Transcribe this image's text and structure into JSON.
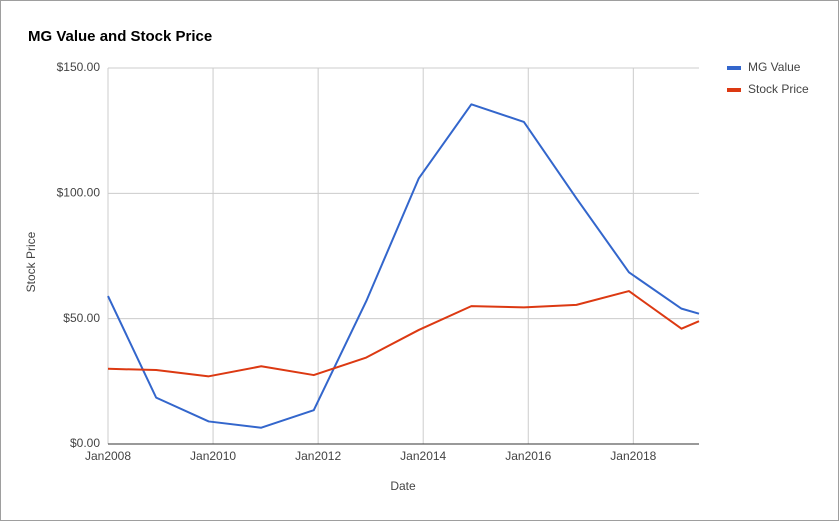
{
  "chart_data": {
    "type": "line",
    "title": "MG Value and Stock Price",
    "x_label": "Date",
    "y_label": "Stock Price",
    "x": [
      "2008-01",
      "2008-12",
      "2009-12",
      "2010-12",
      "2011-12",
      "2012-12",
      "2013-12",
      "2014-12",
      "2015-12",
      "2016-12",
      "2017-12",
      "2018-12",
      "2019-04"
    ],
    "series": [
      {
        "name": "MG Value",
        "color": "#3366cc",
        "values": [
          59,
          18.5,
          9,
          6.5,
          13.5,
          57,
          106,
          135.5,
          128.5,
          98,
          68.5,
          54,
          52
        ]
      },
      {
        "name": "Stock Price",
        "color": "#dc3912",
        "values": [
          30,
          29.5,
          27,
          31,
          27.5,
          34.5,
          45.5,
          55,
          54.5,
          55.5,
          61,
          46,
          49
        ]
      }
    ],
    "xlim": [
      "2008-01",
      "2019-04"
    ],
    "xticks": [
      {
        "value": "2008-01",
        "label": "Jan2008"
      },
      {
        "value": "2010-01",
        "label": "Jan2010"
      },
      {
        "value": "2012-01",
        "label": "Jan2012"
      },
      {
        "value": "2014-01",
        "label": "Jan2014"
      },
      {
        "value": "2016-01",
        "label": "Jan2016"
      },
      {
        "value": "2018-01",
        "label": "Jan2018"
      }
    ],
    "ylim": [
      0,
      150
    ],
    "yticks": [
      {
        "value": 0,
        "label": "$0.00"
      },
      {
        "value": 50,
        "label": "$50.00"
      },
      {
        "value": 100,
        "label": "$100.00"
      },
      {
        "value": 150,
        "label": "$150.00"
      }
    ],
    "grid": true,
    "legend": "right"
  }
}
